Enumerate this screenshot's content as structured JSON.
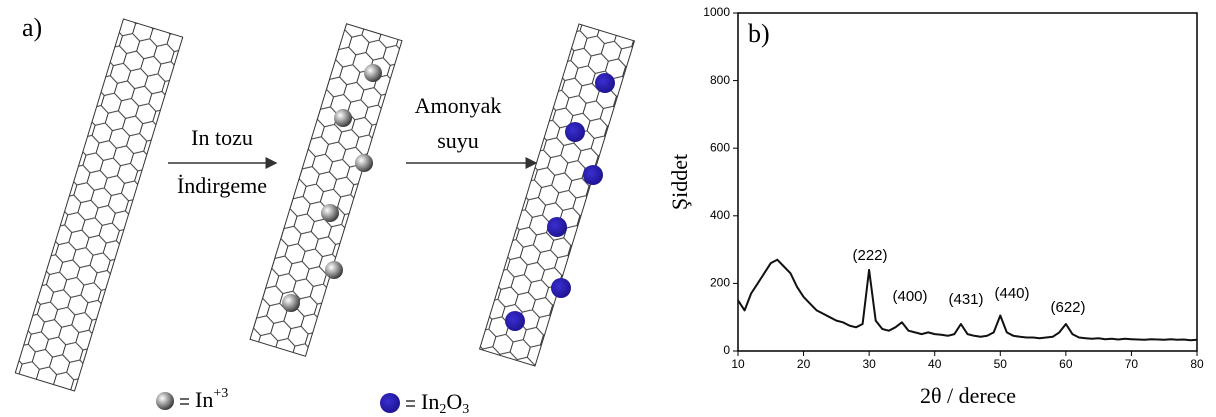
{
  "diagram": {
    "panel_label": "a)",
    "step1": {
      "top": "In tozu",
      "bottom": "İndirgeme"
    },
    "step2": {
      "top": "Amonyak",
      "bottom": "suyu"
    },
    "legend": [
      {
        "text": "In",
        "sup": "+3"
      },
      {
        "parts": [
          "In",
          "2",
          "O",
          "3"
        ]
      }
    ]
  },
  "chart_data": {
    "type": "line",
    "panel_label": "b)",
    "x_label": "2θ / derece",
    "y_label": "Şiddet",
    "x": [
      10,
      11,
      12,
      13,
      14,
      15,
      16,
      17,
      18,
      19,
      20,
      21,
      22,
      23,
      24,
      25,
      26,
      27,
      28,
      29,
      30,
      31,
      32,
      33,
      34,
      35,
      36,
      37,
      38,
      39,
      40,
      41,
      42,
      43,
      44,
      45,
      46,
      47,
      48,
      49,
      50,
      51,
      52,
      53,
      54,
      55,
      56,
      57,
      58,
      59,
      60,
      61,
      62,
      63,
      64,
      65,
      66,
      67,
      68,
      69,
      70,
      71,
      72,
      73,
      74,
      75,
      76,
      77,
      78,
      79,
      80
    ],
    "values": [
      150,
      120,
      170,
      200,
      230,
      260,
      270,
      250,
      230,
      190,
      160,
      140,
      120,
      110,
      100,
      90,
      85,
      75,
      70,
      80,
      240,
      90,
      65,
      60,
      70,
      85,
      60,
      55,
      50,
      55,
      50,
      48,
      45,
      50,
      80,
      50,
      45,
      42,
      45,
      55,
      105,
      55,
      45,
      42,
      40,
      40,
      38,
      40,
      42,
      55,
      80,
      50,
      40,
      38,
      36,
      38,
      35,
      36,
      34,
      36,
      35,
      34,
      33,
      35,
      34,
      33,
      35,
      33,
      34,
      32,
      33
    ],
    "color": "#111111",
    "annotations": [
      "(222)",
      "(400)",
      "(431)",
      "(440)",
      "(622)"
    ],
    "xlim": [
      10,
      80
    ],
    "xticks": [
      10,
      20,
      30,
      40,
      50,
      60,
      70,
      80
    ],
    "ylim": [
      0,
      1000
    ],
    "yticks": [
      0,
      200,
      400,
      600,
      800,
      1000
    ]
  }
}
